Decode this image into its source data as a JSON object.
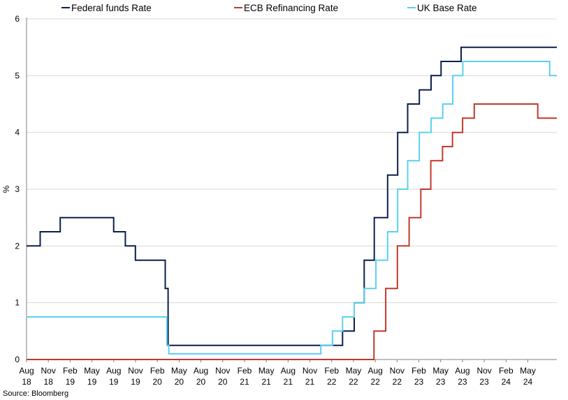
{
  "chart_data": {
    "type": "line",
    "title": "",
    "xlabel": "",
    "ylabel": "%",
    "ylim": [
      0,
      6
    ],
    "yticks": [
      0,
      1,
      2,
      3,
      4,
      5,
      6
    ],
    "grid": "horizontal",
    "legend_position": "top",
    "xtick_labels": [
      [
        "Aug",
        "18"
      ],
      [
        "Nov",
        "18"
      ],
      [
        "Feb",
        "19"
      ],
      [
        "May",
        "19"
      ],
      [
        "Aug",
        "19"
      ],
      [
        "Nov",
        "19"
      ],
      [
        "Feb",
        "20"
      ],
      [
        "May",
        "20"
      ],
      [
        "Aug",
        "20"
      ],
      [
        "Nov",
        "20"
      ],
      [
        "Feb",
        "21"
      ],
      [
        "May",
        "21"
      ],
      [
        "Aug",
        "21"
      ],
      [
        "Nov",
        "21"
      ],
      [
        "Feb",
        "22"
      ],
      [
        "May",
        "22"
      ],
      [
        "Aug",
        "22"
      ],
      [
        "Nov",
        "22"
      ],
      [
        "Feb",
        "23"
      ],
      [
        "May",
        "23"
      ],
      [
        "Aug",
        "23"
      ],
      [
        "Nov",
        "23"
      ],
      [
        "Feb",
        "24"
      ],
      [
        "May",
        "24"
      ]
    ],
    "x_range": [
      "2018-08-01",
      "2024-08-31"
    ],
    "series": [
      {
        "name": "Federal funds Rate",
        "color": "#0b1f4d",
        "step": true,
        "points": [
          [
            "2018-08-01",
            2.0
          ],
          [
            "2018-09-27",
            2.25
          ],
          [
            "2018-12-20",
            2.5
          ],
          [
            "2019-08-01",
            2.25
          ],
          [
            "2019-09-19",
            2.0
          ],
          [
            "2019-10-31",
            1.75
          ],
          [
            "2020-03-04",
            1.25
          ],
          [
            "2020-03-16",
            0.25
          ],
          [
            "2022-03-17",
            0.5
          ],
          [
            "2022-05-05",
            1.0
          ],
          [
            "2022-06-16",
            1.75
          ],
          [
            "2022-07-28",
            2.5
          ],
          [
            "2022-09-22",
            3.25
          ],
          [
            "2022-11-03",
            4.0
          ],
          [
            "2022-12-15",
            4.5
          ],
          [
            "2023-02-02",
            4.75
          ],
          [
            "2023-03-23",
            5.0
          ],
          [
            "2023-05-04",
            5.25
          ],
          [
            "2023-07-27",
            5.5
          ],
          [
            "2024-08-31",
            5.5
          ]
        ]
      },
      {
        "name": "ECB Refinancing Rate",
        "color": "#c0392b",
        "step": true,
        "points": [
          [
            "2018-08-01",
            0.0
          ],
          [
            "2022-07-27",
            0.5
          ],
          [
            "2022-09-14",
            1.25
          ],
          [
            "2022-11-02",
            2.0
          ],
          [
            "2022-12-21",
            2.5
          ],
          [
            "2023-02-08",
            3.0
          ],
          [
            "2023-03-22",
            3.5
          ],
          [
            "2023-05-10",
            3.75
          ],
          [
            "2023-06-21",
            4.0
          ],
          [
            "2023-08-02",
            4.25
          ],
          [
            "2023-09-20",
            4.5
          ],
          [
            "2024-06-12",
            4.25
          ],
          [
            "2024-08-31",
            4.25
          ]
        ]
      },
      {
        "name": "UK Base Rate",
        "color": "#5bd0f0",
        "step": true,
        "points": [
          [
            "2018-08-01",
            0.75
          ],
          [
            "2020-03-11",
            0.25
          ],
          [
            "2020-03-19",
            0.1
          ],
          [
            "2021-12-16",
            0.25
          ],
          [
            "2022-02-03",
            0.5
          ],
          [
            "2022-03-17",
            0.75
          ],
          [
            "2022-05-05",
            1.0
          ],
          [
            "2022-06-16",
            1.25
          ],
          [
            "2022-08-04",
            1.75
          ],
          [
            "2022-09-22",
            2.25
          ],
          [
            "2022-11-03",
            3.0
          ],
          [
            "2022-12-15",
            3.5
          ],
          [
            "2023-02-02",
            4.0
          ],
          [
            "2023-03-23",
            4.25
          ],
          [
            "2023-05-11",
            4.5
          ],
          [
            "2023-06-22",
            5.0
          ],
          [
            "2023-08-03",
            5.25
          ],
          [
            "2024-08-01",
            5.0
          ],
          [
            "2024-08-31",
            5.0
          ]
        ]
      }
    ]
  },
  "source": "Source: Bloomberg"
}
